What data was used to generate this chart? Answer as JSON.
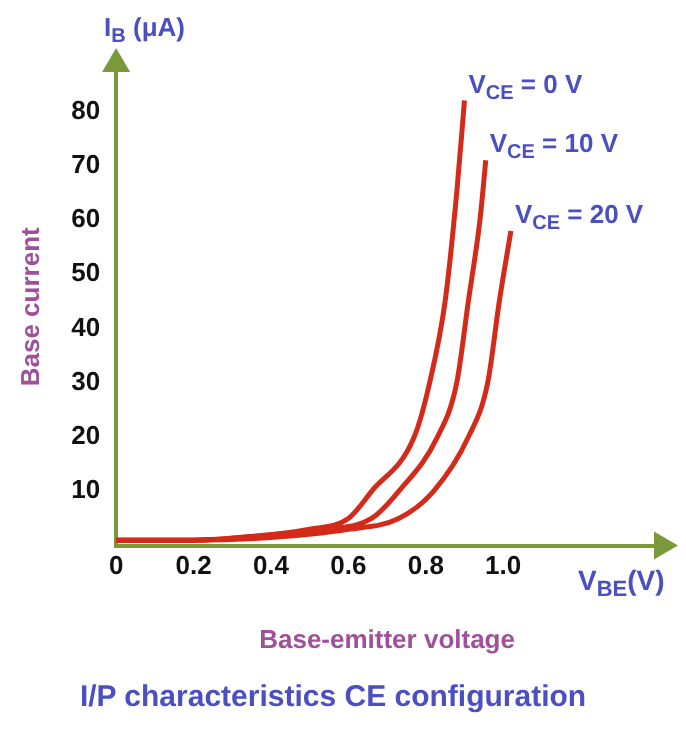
{
  "chart_data": {
    "type": "line",
    "title": "I/P characteristics CE configuration",
    "xlabel": "Base-emitter voltage",
    "ylabel": "Base current",
    "annotations": [
      "I$_{B}$ (μA)",
      "V$_{BE}$(V)"
    ],
    "xlim": [
      0,
      1.4
    ],
    "xticks": [
      0,
      0.2,
      0.4,
      0.6,
      0.8,
      {
        "value": 1,
        "label": "1.0"
      }
    ],
    "ylim": [
      0,
      88
    ],
    "yticks": [
      10,
      20,
      30,
      40,
      50,
      60,
      70,
      80
    ],
    "grid": false,
    "legend": false,
    "marker": "none",
    "line_style": "solid",
    "series": [
      {
        "name": "V$_{CE}$ = 0 V",
        "color": "#d42a1a",
        "x": [
          0,
          0.2,
          0.4,
          0.5,
          0.6,
          0.66,
          0.77,
          0.81,
          0.85,
          0.88,
          0.9
        ],
        "values": [
          1,
          1,
          2,
          3,
          5,
          10,
          20,
          30,
          45,
          65,
          82
        ]
      },
      {
        "name": "V$_{CE}$ = 10 V",
        "color": "#d42a1a",
        "x": [
          0,
          0.2,
          0.4,
          0.55,
          0.66,
          0.73,
          0.83,
          0.88,
          0.91,
          0.94,
          0.955
        ],
        "values": [
          1,
          1,
          2,
          3,
          5,
          10,
          20,
          30,
          45,
          60,
          71
        ]
      },
      {
        "name": "V$_{CE}$ = 20 V",
        "color": "#d42a1a",
        "x": [
          0,
          0.2,
          0.4,
          0.6,
          0.73,
          0.82,
          0.91,
          0.96,
          0.99,
          1.02
        ],
        "values": [
          1,
          1,
          1.5,
          3,
          5,
          10,
          20,
          30,
          45,
          58
        ]
      }
    ]
  }
}
